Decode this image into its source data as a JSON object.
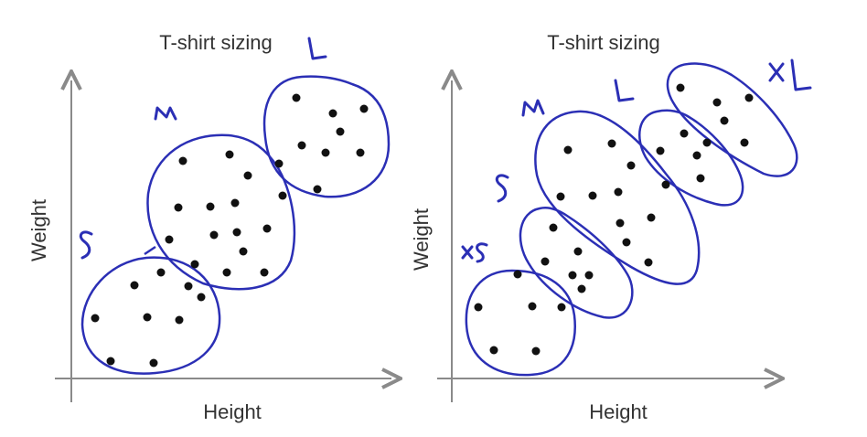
{
  "left_panel": {
    "title": "T-shirt sizing",
    "xlabel": "Height",
    "ylabel": "Weight",
    "clusters": [
      "S",
      "M",
      "L"
    ]
  },
  "right_panel": {
    "title": "T-shirt sizing",
    "xlabel": "Height",
    "ylabel": "Weight",
    "clusters": [
      "XS",
      "S",
      "M",
      "L",
      "XL"
    ]
  },
  "colors": {
    "ink": "#2b2fb5",
    "axis": "#8a8a8a",
    "points": "#111111"
  }
}
